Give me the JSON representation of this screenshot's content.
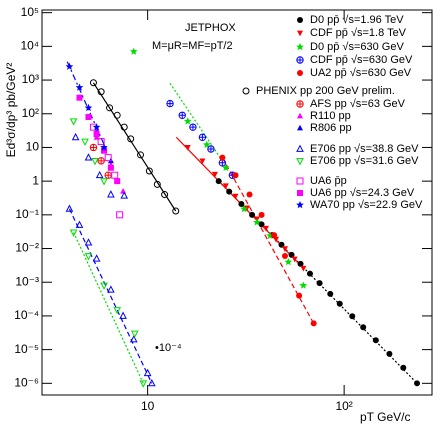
{
  "chart_data": {
    "type": "scatter",
    "annotations": [
      "JETPHOX",
      "M=μR=MF=pT/2",
      "•10⁻⁴"
    ],
    "x_label": "pT GeV/c",
    "y_label": "Ed³σ/dp³ pb/GeV²",
    "log_x": true,
    "log_y": true,
    "xlim": [
      2.9,
      280
    ],
    "xticks": [
      10,
      {
        "value": 100,
        "label": "10²"
      }
    ],
    "ylim": [
      4.5e-07,
      120000
    ],
    "yticks": [
      {
        "value": 1e-06,
        "label": "10⁻⁶"
      },
      {
        "value": 1e-05,
        "label": "10⁻⁵"
      },
      {
        "value": 0.0001,
        "label": "10⁻⁴"
      },
      {
        "value": 0.001,
        "label": "10⁻³"
      },
      {
        "value": 0.01,
        "label": "10⁻²"
      },
      {
        "value": 0.1,
        "label": "10⁻¹"
      },
      1,
      10,
      {
        "value": 100,
        "label": "10²"
      },
      {
        "value": 1000,
        "label": "10³"
      },
      {
        "value": 10000,
        "label": "10⁴"
      },
      {
        "value": 100000,
        "label": "10⁵"
      }
    ],
    "series": [
      {
        "name": "D0 pp̄ √s=1.96 TeV",
        "color": "#000000",
        "marker": "circle",
        "x": [
          23,
          26,
          30,
          34,
          38,
          43,
          48,
          54,
          60,
          67,
          75,
          85,
          95,
          110,
          125,
          145,
          170,
          200,
          235
        ],
        "values": [
          1.0,
          0.49,
          0.21,
          0.1,
          0.052,
          0.025,
          0.013,
          0.0065,
          0.0035,
          0.0018,
          0.00094,
          0.00045,
          0.00023,
          9.8e-05,
          4.6e-05,
          1.9e-05,
          7.5e-06,
          2.9e-06,
          1e-06
        ]
      },
      {
        "name": "CDF pp̄ √s=1.8 TeV",
        "color": "#ff0000",
        "marker": "triangle-down",
        "x": [
          16,
          19,
          22,
          25,
          28,
          32,
          36,
          40,
          45,
          50,
          56,
          62
        ],
        "values": [
          10,
          4,
          1.6,
          0.73,
          0.36,
          0.16,
          0.076,
          0.04,
          0.019,
          0.0099,
          0.0049,
          0.0026
        ]
      },
      {
        "name": "D0 pp̄ √s=630 GeV",
        "color": "#00dd00",
        "marker": "star",
        "x": [
          8.5,
          16,
          20,
          25,
          31,
          36,
          42,
          52,
          62
        ],
        "values": [
          7000,
          60,
          12,
          2.5,
          0.15,
          0.06,
          0.024,
          0.004,
          0.0008
        ]
      },
      {
        "name": "CDF pp̄ √s=630 GeV",
        "color": "#0000ff",
        "marker": "cross-circle",
        "x": [
          13,
          15,
          17,
          19,
          21,
          24,
          27
        ],
        "values": [
          200,
          90,
          40,
          20,
          9,
          3.5,
          1.5
        ]
      },
      {
        "name": "UA2 pp̄ √s=630 GeV",
        "color": "#ff0000",
        "marker": "circle",
        "x": [
          24,
          28,
          33,
          38,
          44,
          50,
          59,
          70
        ],
        "values": [
          5,
          1.5,
          0.4,
          0.1,
          0.025,
          0.006,
          0.0004,
          6e-05
        ]
      },
      {
        "name": "PHENIX pp 200 GeV prelim.",
        "color": "#000000",
        "marker": "circle-open",
        "x": [
          5.3,
          5.8,
          6.4,
          7.0,
          7.6,
          8.2,
          9.2,
          10.2,
          11.2,
          12.2,
          13.9
        ],
        "values": [
          830,
          450,
          150,
          90,
          40,
          18,
          6,
          2,
          0.8,
          0.4,
          0.13
        ]
      },
      {
        "name": "AFS pp √s=63 GeV",
        "color": "#ff0000",
        "marker": "cross-circle",
        "x": [
          5.3,
          5.8,
          6.3
        ],
        "values": [
          10,
          4,
          1.5
        ]
      },
      {
        "name": "R110 pp",
        "color": "#ff00ff",
        "marker": "triangle",
        "x": [
          5.5,
          6.5,
          7.5
        ],
        "values": [
          20,
          3,
          0.5
        ]
      },
      {
        "name": "R806 pp",
        "color": "#0000ff",
        "marker": "triangle",
        "x": [
          4.5,
          5.5,
          6.5
        ],
        "values": [
          300,
          30,
          4
        ]
      },
      {
        "name": "E706 pp √s=38.8 GeV",
        "color": "#0000ff",
        "marker": "triangle-open",
        "x": [
          4.3,
          5.0,
          5.7,
          6.5,
          7.6
        ],
        "values": [
          20,
          5,
          1.5,
          0.4,
          0.37
        ]
      },
      {
        "name": "E706 pp √s=31.6 GeV",
        "color": "#00dd00",
        "marker": "triangle-down-open",
        "x": [
          4.2,
          4.8,
          5.4,
          6.0
        ],
        "values": [
          60,
          15,
          4,
          1
        ]
      },
      {
        "name": "UA6 p̄p",
        "color": "#ff00ff",
        "marker": "square-open",
        "x": [
          5.3,
          5.8,
          6.3,
          6.8,
          7.2
        ],
        "values": [
          40,
          15,
          5,
          1.5,
          0.1
        ]
      },
      {
        "name": "UA6 pp √s=24.3 GeV",
        "color": "#ff00ff",
        "marker": "square",
        "x": [
          4.5,
          5.0,
          5.5,
          6.0,
          6.5,
          7.0
        ],
        "values": [
          300,
          80,
          25,
          8,
          2.5,
          1
        ]
      },
      {
        "name": "WA70 pp √s=22.9 GeV",
        "color": "#0000ff",
        "marker": "star",
        "x": [
          4.0,
          4.5,
          5.0,
          5.5,
          6.0
        ],
        "values": [
          2500,
          600,
          150,
          40,
          10
        ]
      },
      {
        "color": "#0000ff",
        "marker": "triangle-open",
        "x": [
          4.0,
          4.5,
          5.0,
          5.5,
          6.5,
          7.5,
          8.5,
          10,
          10.5
        ],
        "values": [
          0.15,
          0.05,
          0.015,
          0.005,
          0.0006,
          0.0001,
          2e-05,
          2e-06,
          1e-06
        ]
      },
      {
        "color": "#00dd00",
        "marker": "triangle-down-open",
        "x": [
          4.2,
          5.0,
          6.0,
          7.0,
          8.6,
          9.5
        ],
        "values": [
          0.03,
          0.006,
          0.0008,
          0.00015,
          3e-05,
          1e-06
        ]
      }
    ],
    "curves": [
      {
        "color": "#000000",
        "dash": "2,2",
        "x": [
          23,
          235
        ],
        "values": [
          1.0,
          1e-06
        ]
      },
      {
        "color": "#ff0000",
        "dash": "",
        "x": [
          14,
          62
        ],
        "values": [
          20,
          0.0026
        ]
      },
      {
        "color": "#ff0000",
        "dash": "5,3",
        "x": [
          24,
          70
        ],
        "values": [
          5,
          6e-05
        ]
      },
      {
        "color": "#00dd00",
        "dash": "2,2",
        "x": [
          13,
          24
        ],
        "values": [
          800,
          4
        ]
      },
      {
        "color": "#000000",
        "dash": "",
        "x": [
          5.3,
          13.9
        ],
        "values": [
          830,
          0.13
        ]
      },
      {
        "color": "#0000ff",
        "dash": "6,3,2,3",
        "x": [
          3.9,
          6.2
        ],
        "values": [
          3500,
          8
        ]
      },
      {
        "color": "#0000ff",
        "dash": "5,3",
        "x": [
          4.0,
          10.5
        ],
        "values": [
          0.15,
          1e-06
        ]
      },
      {
        "color": "#00dd00",
        "dash": "2,2",
        "x": [
          4.2,
          9.5
        ],
        "values": [
          0.03,
          1e-06
        ]
      }
    ]
  }
}
